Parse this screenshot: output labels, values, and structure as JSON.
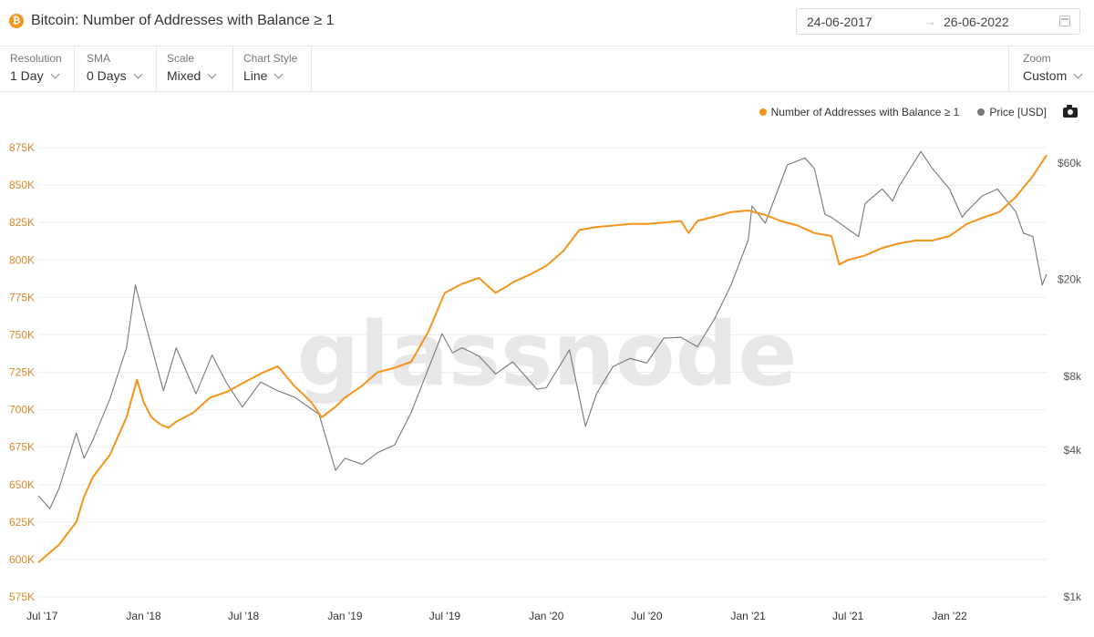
{
  "header": {
    "coin_icon": "bitcoin-icon",
    "title": "Bitcoin: Number of Addresses with Balance ≥ 1",
    "date_start": "24-06-2017",
    "date_arrow": "→",
    "date_end": "26-06-2022",
    "calendar_icon": "calendar-icon"
  },
  "toolbar": {
    "resolution": {
      "label": "Resolution",
      "value": "1 Day"
    },
    "sma": {
      "label": "SMA",
      "value": "0 Days"
    },
    "scale": {
      "label": "Scale",
      "value": "Mixed"
    },
    "chart_style": {
      "label": "Chart Style",
      "value": "Line"
    },
    "zoom": {
      "label": "Zoom",
      "value": "Custom"
    }
  },
  "legend": {
    "addresses": "Number of Addresses with Balance ≥ 1",
    "price": "Price [USD]",
    "camera_icon": "camera-icon"
  },
  "watermark": "glassnode",
  "colors": {
    "addresses": "#f7931a",
    "price": "#777777",
    "left_axis": "#d88a2a",
    "right_axis": "#555555",
    "grid": "#eeeeee"
  },
  "chart_data": {
    "type": "line",
    "x_label_text": [
      "Jul '17",
      "Jan '18",
      "Jul '18",
      "Jan '19",
      "Jul '19",
      "Jan '20",
      "Jul '20",
      "Jan '21",
      "Jul '21",
      "Jan '22"
    ],
    "x_ticks": [
      "2017-07-01",
      "2018-01-01",
      "2018-07-01",
      "2019-01-01",
      "2019-07-01",
      "2020-01-01",
      "2020-07-01",
      "2021-01-01",
      "2021-07-01",
      "2022-01-01"
    ],
    "xlim": [
      "2017-06-24",
      "2022-06-26"
    ],
    "y_left": {
      "label": "",
      "ticks": [
        575000,
        600000,
        625000,
        650000,
        675000,
        700000,
        725000,
        750000,
        775000,
        800000,
        825000,
        850000,
        875000
      ],
      "tick_labels": [
        "575K",
        "600K",
        "625K",
        "650K",
        "675K",
        "700K",
        "725K",
        "750K",
        "775K",
        "800K",
        "825K",
        "850K",
        "875K"
      ],
      "ylim": [
        575000,
        875000
      ]
    },
    "y_right": {
      "label": "",
      "scale": "log",
      "ticks": [
        1000,
        4000,
        8000,
        20000,
        60000
      ],
      "tick_labels": [
        "$1k",
        "$4k",
        "$8k",
        "$20k",
        "$60k"
      ],
      "ylim": [
        1000,
        60000
      ]
    },
    "grid": true,
    "legend_position": "top-right",
    "series": [
      {
        "name": "Number of Addresses with Balance ≥ 1",
        "axis": "left",
        "x": [
          "2017-06-24",
          "2017-08-01",
          "2017-09-01",
          "2017-09-15",
          "2017-10-01",
          "2017-11-01",
          "2017-12-01",
          "2017-12-20",
          "2018-01-01",
          "2018-01-15",
          "2018-02-01",
          "2018-02-15",
          "2018-03-01",
          "2018-04-01",
          "2018-05-01",
          "2018-06-01",
          "2018-07-01",
          "2018-08-01",
          "2018-09-01",
          "2018-10-01",
          "2018-11-01",
          "2018-11-20",
          "2018-12-15",
          "2019-01-01",
          "2019-02-01",
          "2019-03-01",
          "2019-04-01",
          "2019-05-01",
          "2019-06-01",
          "2019-07-01",
          "2019-08-01",
          "2019-09-01",
          "2019-10-01",
          "2019-10-20",
          "2019-11-01",
          "2019-12-01",
          "2020-01-01",
          "2020-02-01",
          "2020-03-01",
          "2020-04-01",
          "2020-05-01",
          "2020-06-01",
          "2020-07-01",
          "2020-08-01",
          "2020-09-01",
          "2020-09-15",
          "2020-10-01",
          "2020-11-01",
          "2020-12-01",
          "2021-01-01",
          "2021-02-01",
          "2021-03-01",
          "2021-04-01",
          "2021-05-01",
          "2021-06-01",
          "2021-06-15",
          "2021-07-01",
          "2021-08-01",
          "2021-09-01",
          "2021-10-01",
          "2021-11-01",
          "2021-12-01",
          "2022-01-01",
          "2022-02-01",
          "2022-03-01",
          "2022-04-01",
          "2022-05-01",
          "2022-06-01",
          "2022-06-26"
        ],
        "values": [
          598000,
          610000,
          625000,
          642000,
          655000,
          670000,
          695000,
          720000,
          705000,
          695000,
          690000,
          688000,
          692000,
          698000,
          708000,
          712000,
          718000,
          724000,
          729000,
          716000,
          705000,
          695000,
          702000,
          708000,
          716000,
          725000,
          728000,
          732000,
          752000,
          778000,
          784000,
          788000,
          778000,
          782000,
          785000,
          790000,
          796000,
          806000,
          820000,
          822000,
          823000,
          824000,
          824000,
          825000,
          826000,
          818000,
          826000,
          829000,
          832000,
          833000,
          830000,
          826000,
          823000,
          818000,
          816000,
          797000,
          800000,
          803000,
          808000,
          811000,
          813000,
          813000,
          816000,
          824000,
          828000,
          832000,
          842000,
          856000,
          870000
        ]
      },
      {
        "name": "Price [USD]",
        "axis": "right",
        "x": [
          "2017-06-24",
          "2017-07-15",
          "2017-08-01",
          "2017-09-01",
          "2017-09-15",
          "2017-10-01",
          "2017-11-01",
          "2017-12-01",
          "2017-12-17",
          "2018-01-01",
          "2018-02-06",
          "2018-03-01",
          "2018-04-06",
          "2018-05-05",
          "2018-06-01",
          "2018-06-29",
          "2018-08-01",
          "2018-09-01",
          "2018-10-01",
          "2018-11-15",
          "2018-12-15",
          "2019-01-01",
          "2019-02-01",
          "2019-03-01",
          "2019-04-01",
          "2019-05-01",
          "2019-06-01",
          "2019-06-26",
          "2019-07-15",
          "2019-08-01",
          "2019-09-01",
          "2019-10-01",
          "2019-11-01",
          "2019-12-15",
          "2020-01-01",
          "2020-02-12",
          "2020-03-12",
          "2020-04-01",
          "2020-05-01",
          "2020-06-01",
          "2020-07-01",
          "2020-08-01",
          "2020-09-01",
          "2020-10-01",
          "2020-11-01",
          "2020-12-01",
          "2021-01-01",
          "2021-01-08",
          "2021-02-01",
          "2021-03-13",
          "2021-04-14",
          "2021-05-01",
          "2021-05-20",
          "2021-06-01",
          "2021-07-20",
          "2021-08-01",
          "2021-09-01",
          "2021-09-20",
          "2021-10-01",
          "2021-11-10",
          "2021-12-01",
          "2022-01-01",
          "2022-01-24",
          "2022-02-01",
          "2022-03-01",
          "2022-03-29",
          "2022-04-01",
          "2022-05-01",
          "2022-05-15",
          "2022-06-01",
          "2022-06-18",
          "2022-06-26"
        ],
        "values": [
          2600,
          2300,
          2800,
          4700,
          3700,
          4400,
          6500,
          10500,
          19000,
          14000,
          7000,
          10500,
          6800,
          9800,
          7500,
          6000,
          7600,
          7000,
          6600,
          5600,
          3300,
          3700,
          3500,
          3900,
          4200,
          5700,
          8600,
          12000,
          10000,
          10500,
          9700,
          8200,
          9200,
          7100,
          7200,
          10300,
          5000,
          6800,
          8800,
          9500,
          9100,
          11500,
          11600,
          10600,
          13800,
          19000,
          29000,
          40000,
          34000,
          59000,
          63000,
          57000,
          37000,
          36000,
          30000,
          41000,
          47000,
          42000,
          48000,
          67000,
          57000,
          47000,
          36000,
          38000,
          44000,
          47000,
          46000,
          38000,
          31000,
          30000,
          19000,
          21000
        ]
      }
    ]
  }
}
